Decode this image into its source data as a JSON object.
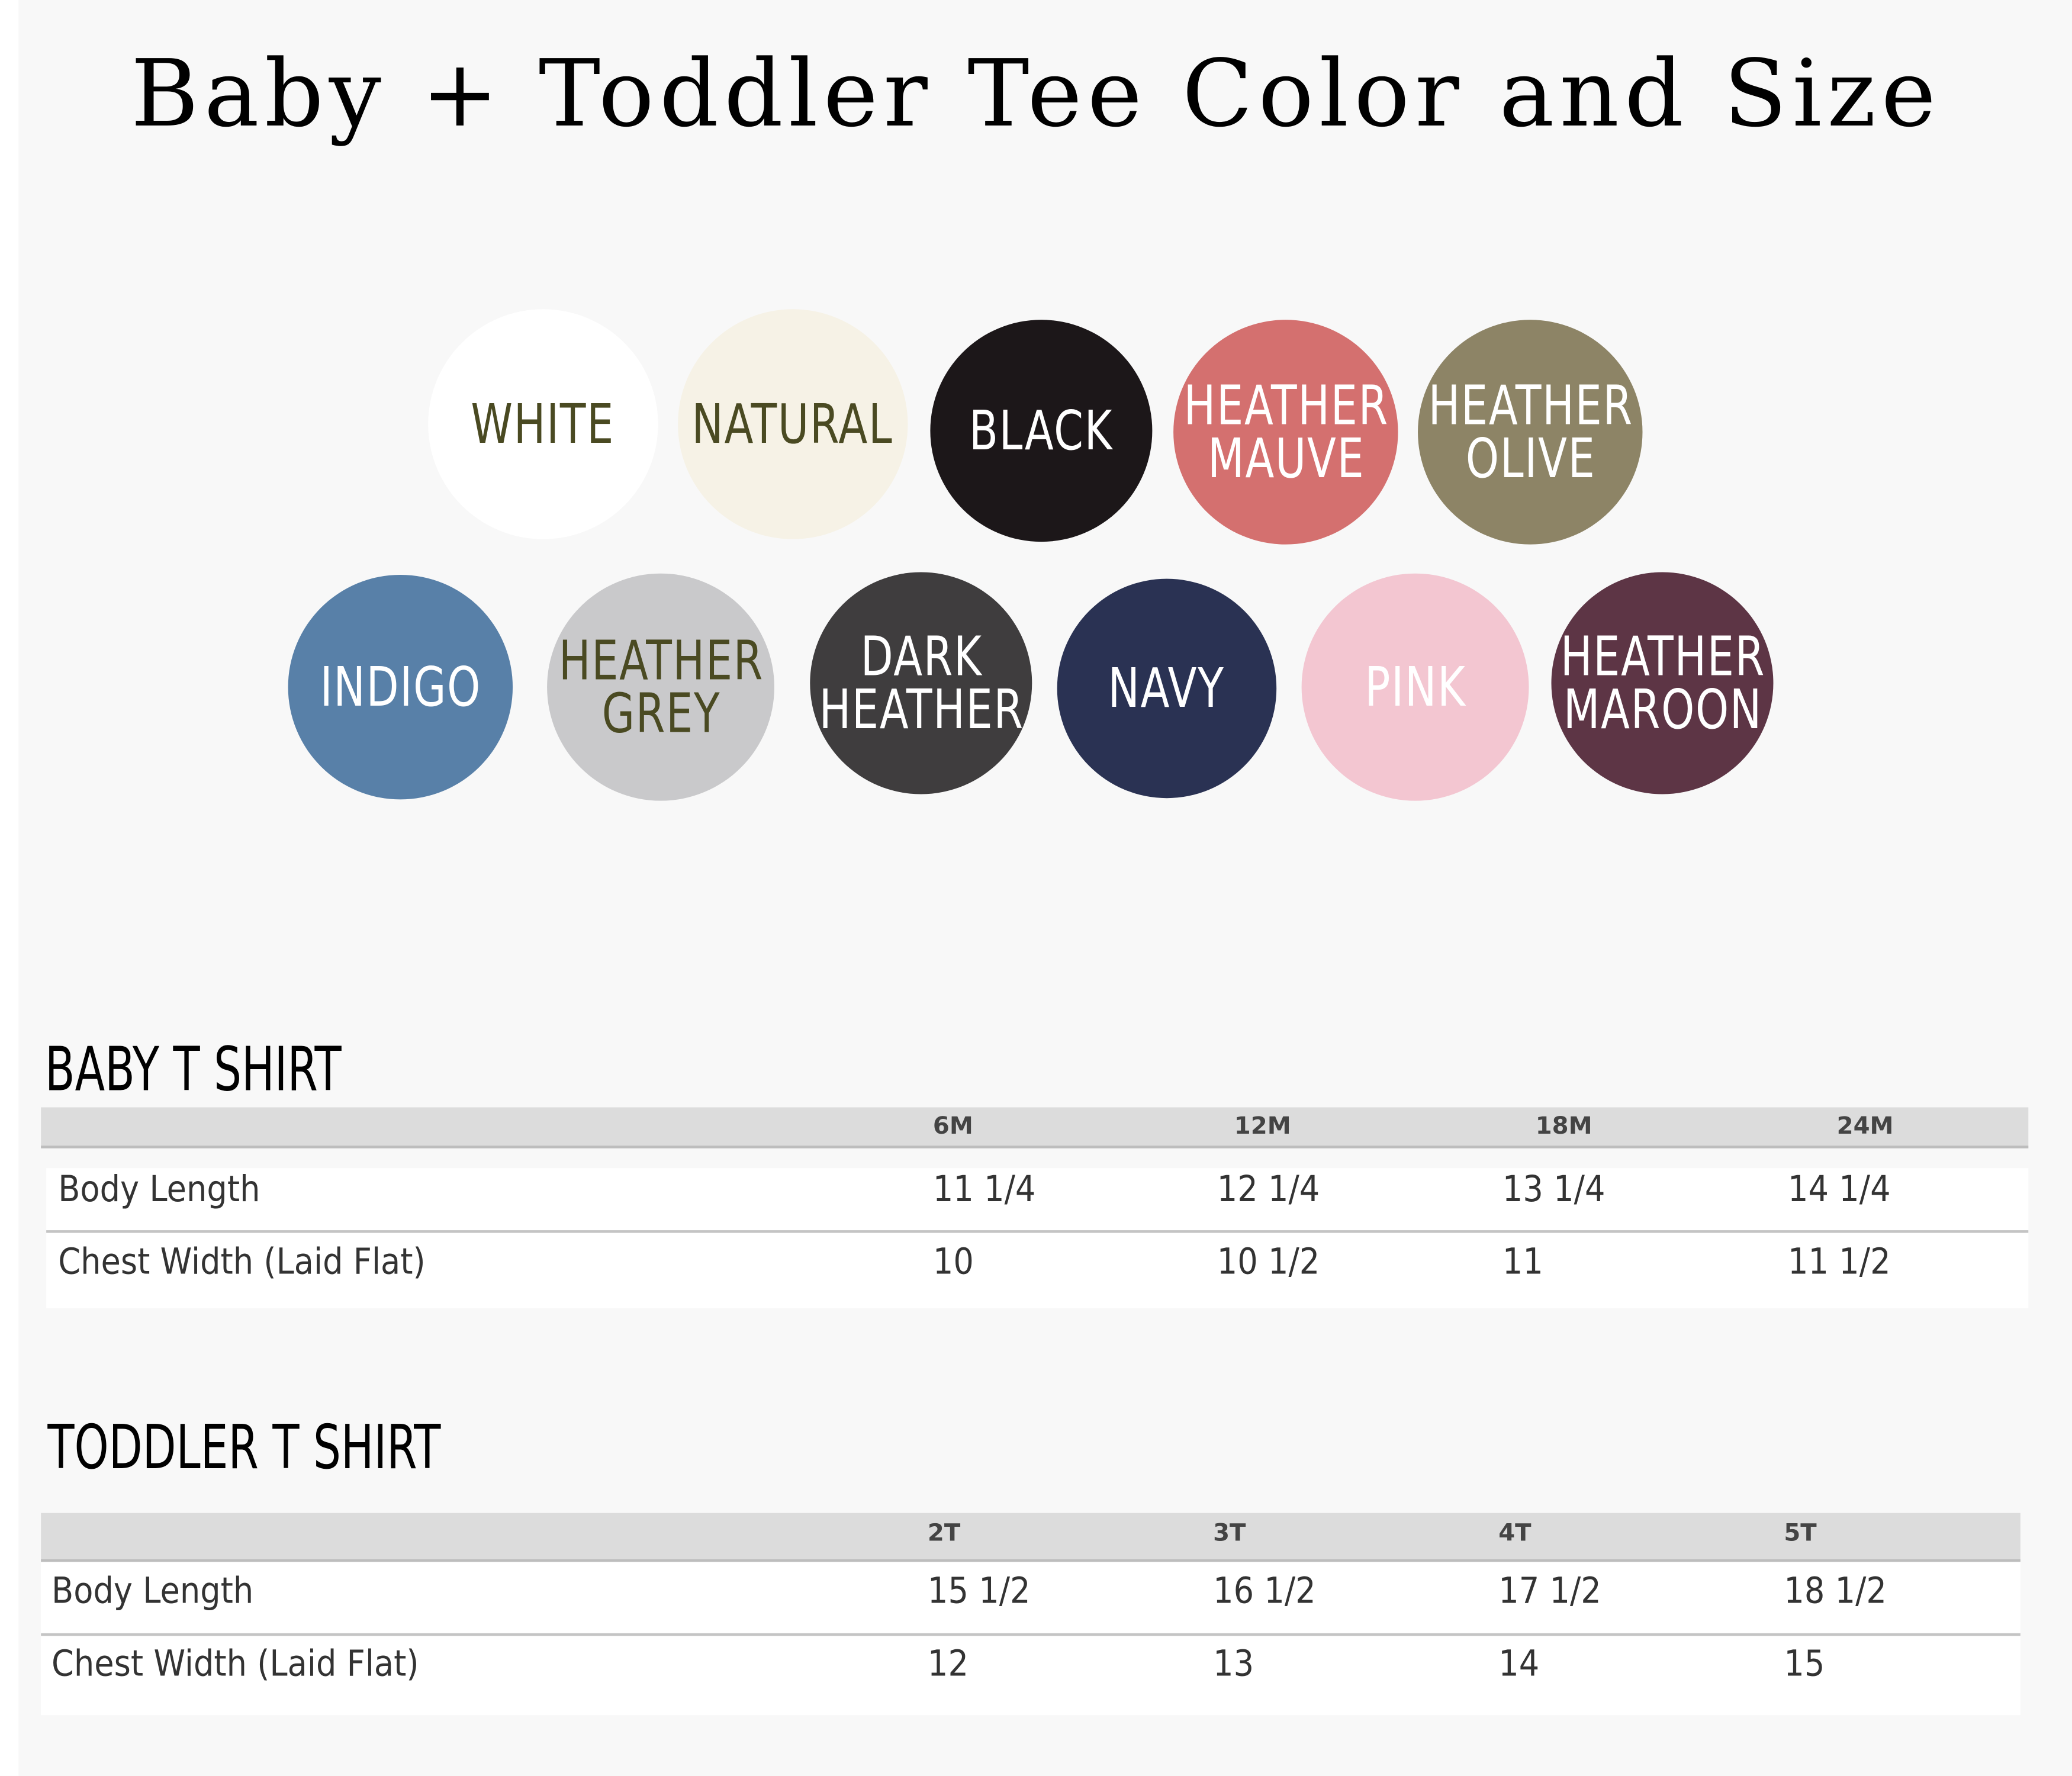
{
  "title": "Baby + Toddler Tee Color and Size",
  "colors": [
    {
      "label": "WHITE",
      "fill": "#ffffff",
      "text": "#4a4a22"
    },
    {
      "label": "NATURAL",
      "fill": "#f6f2e6",
      "text": "#4a4a22"
    },
    {
      "label": "BLACK",
      "fill": "#1c1719",
      "text": "#ffffff"
    },
    {
      "label": "HEATHER\nMAUVE",
      "fill": "#d4706f",
      "text": "#ffffff"
    },
    {
      "label": "HEATHER\nOLIVE",
      "fill": "#8d8466",
      "text": "#ffffff"
    },
    {
      "label": "INDIGO",
      "fill": "#5880a8",
      "text": "#ffffff"
    },
    {
      "label": "HEATHER\nGREY",
      "fill": "#c9c9cb",
      "text": "#4a4a22"
    },
    {
      "label": "DARK\nHEATHER",
      "fill": "#3f3d3e",
      "text": "#ffffff"
    },
    {
      "label": "NAVY",
      "fill": "#2a3253",
      "text": "#ffffff"
    },
    {
      "label": "PINK",
      "fill": "#f3c6d1",
      "text": "#ffffff"
    },
    {
      "label": "HEATHER\nMAROON",
      "fill": "#5d3545",
      "text": "#ffffff"
    }
  ],
  "baby": {
    "heading": "BABY T SHIRT",
    "sizes": [
      "6M",
      "12M",
      "18M",
      "24M"
    ],
    "rows": [
      {
        "label": "Body Length",
        "values": [
          "11 1/4",
          "12 1/4",
          "13 1/4",
          "14 1/4"
        ]
      },
      {
        "label": "Chest Width (Laid Flat)",
        "values": [
          "10",
          "10 1/2",
          "11",
          "11 1/2"
        ]
      }
    ]
  },
  "toddler": {
    "heading": "TODDLER T SHIRT",
    "sizes": [
      "2T",
      "3T",
      "4T",
      "5T"
    ],
    "rows": [
      {
        "label": "Body Length",
        "values": [
          "15 1/2",
          "16 1/2",
          "17 1/2",
          "18 1/2"
        ]
      },
      {
        "label": "Chest Width (Laid Flat)",
        "values": [
          "12",
          "13",
          "14",
          "15"
        ]
      }
    ]
  }
}
